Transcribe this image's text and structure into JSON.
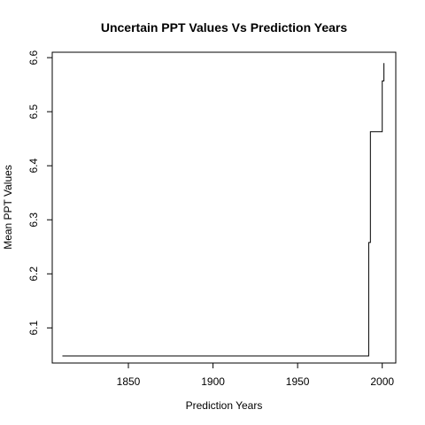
{
  "chart_data": {
    "type": "line",
    "step": true,
    "title": "Uncertain PPT Values Vs Prediction Years",
    "xlabel": "Prediction Years",
    "ylabel": "Mean PPT Values",
    "xlim": [
      1805,
      2008
    ],
    "ylim": [
      6.035,
      6.61
    ],
    "xticks": [
      1850,
      1900,
      1950,
      2000
    ],
    "yticks": [
      6.1,
      6.2,
      6.3,
      6.4,
      6.5,
      6.6
    ],
    "grid": false,
    "series": [
      {
        "x": [
          1811,
          1992,
          1992,
          1993,
          1993,
          2000,
          2000,
          2001,
          2001
        ],
        "y": [
          6.048,
          6.048,
          6.258,
          6.258,
          6.463,
          6.463,
          6.557,
          6.557,
          6.59
        ]
      }
    ]
  }
}
